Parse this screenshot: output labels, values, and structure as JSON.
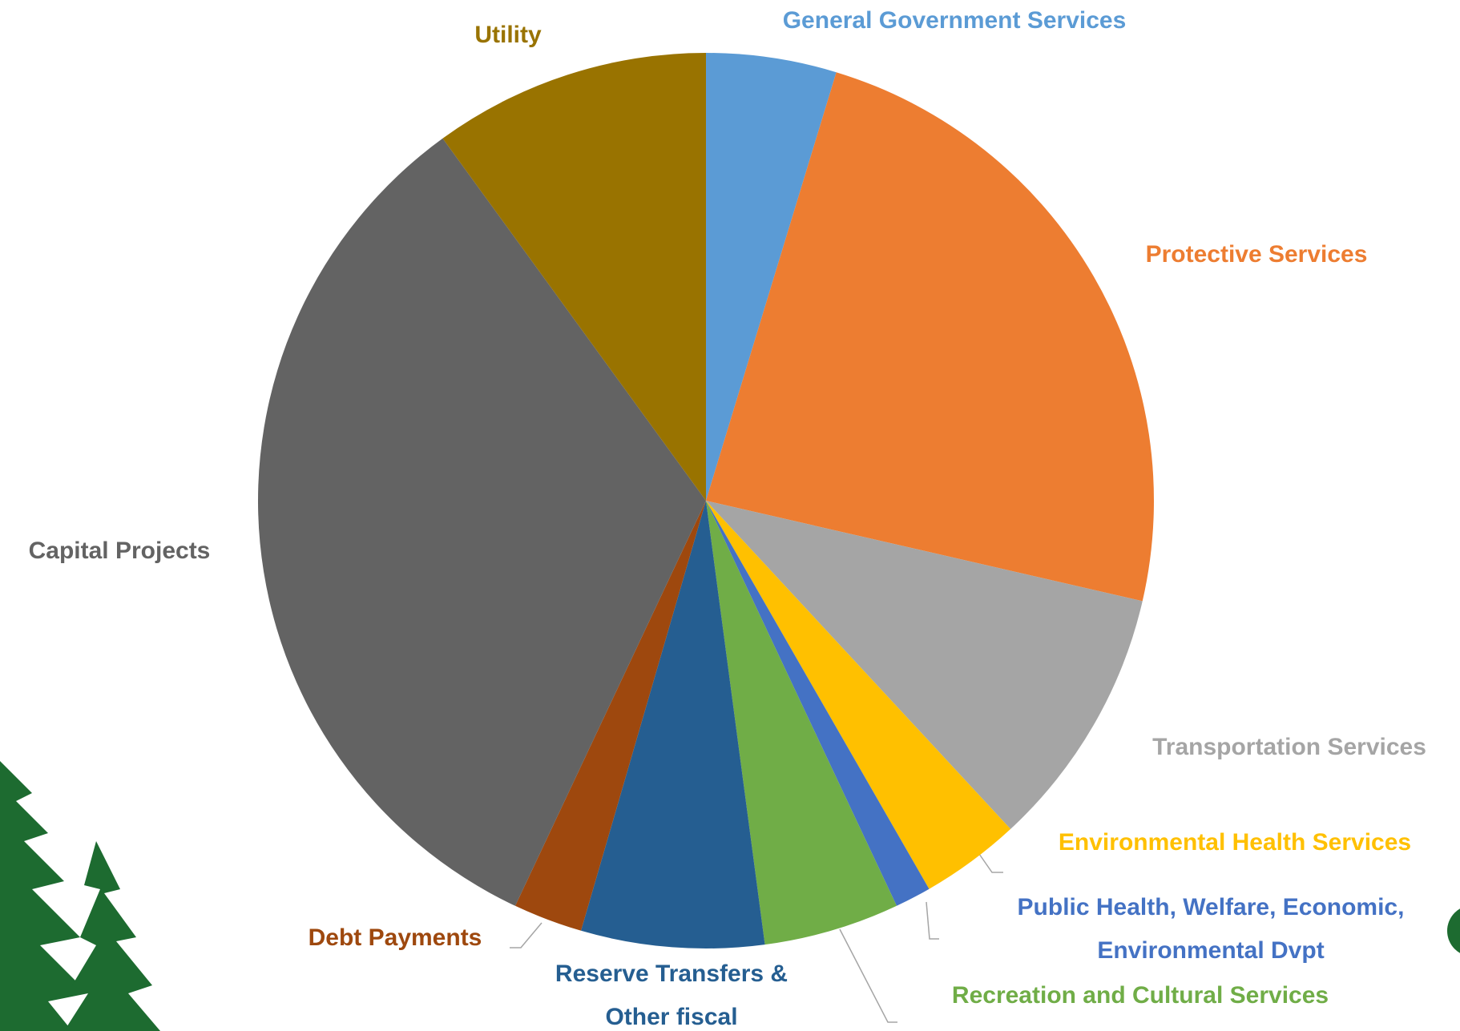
{
  "chart_data": {
    "type": "pie",
    "categories": [
      "General Government Services",
      "Protective Services",
      "Transportation Services",
      "Environmental Health Services",
      "Public Health, Welfare, Economic, Environmental Dvpt",
      "Recreation and Cultural Services",
      "Reserve Transfers & Other fiscal",
      "Debt Payments",
      "Capital Projects",
      "Utility"
    ],
    "values": [
      4.7,
      23.9,
      9.5,
      3.6,
      1.3,
      4.9,
      6.6,
      2.5,
      33.0,
      10.0
    ],
    "colors": [
      "#5b9bd5",
      "#ed7d31",
      "#a5a5a5",
      "#ffc000",
      "#4472c4",
      "#70ad47",
      "#255e91",
      "#9e480e",
      "#636363",
      "#997300"
    ]
  }
}
